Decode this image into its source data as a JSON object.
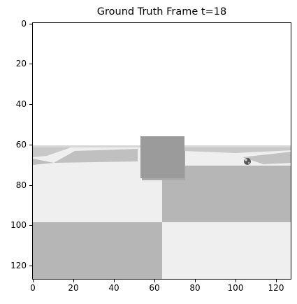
{
  "title": "Ground Truth Frame t=18",
  "axes": {
    "y_ticks": [
      "0",
      "20",
      "40",
      "60",
      "80",
      "100",
      "120"
    ],
    "x_ticks": [
      "0",
      "20",
      "40",
      "60",
      "80",
      "100",
      "120"
    ]
  },
  "colors": {
    "light_tile": "#efefef",
    "dark_tile": "#b6b6b6",
    "cube": "#9b9b9b",
    "sky": "#ffffff"
  }
}
